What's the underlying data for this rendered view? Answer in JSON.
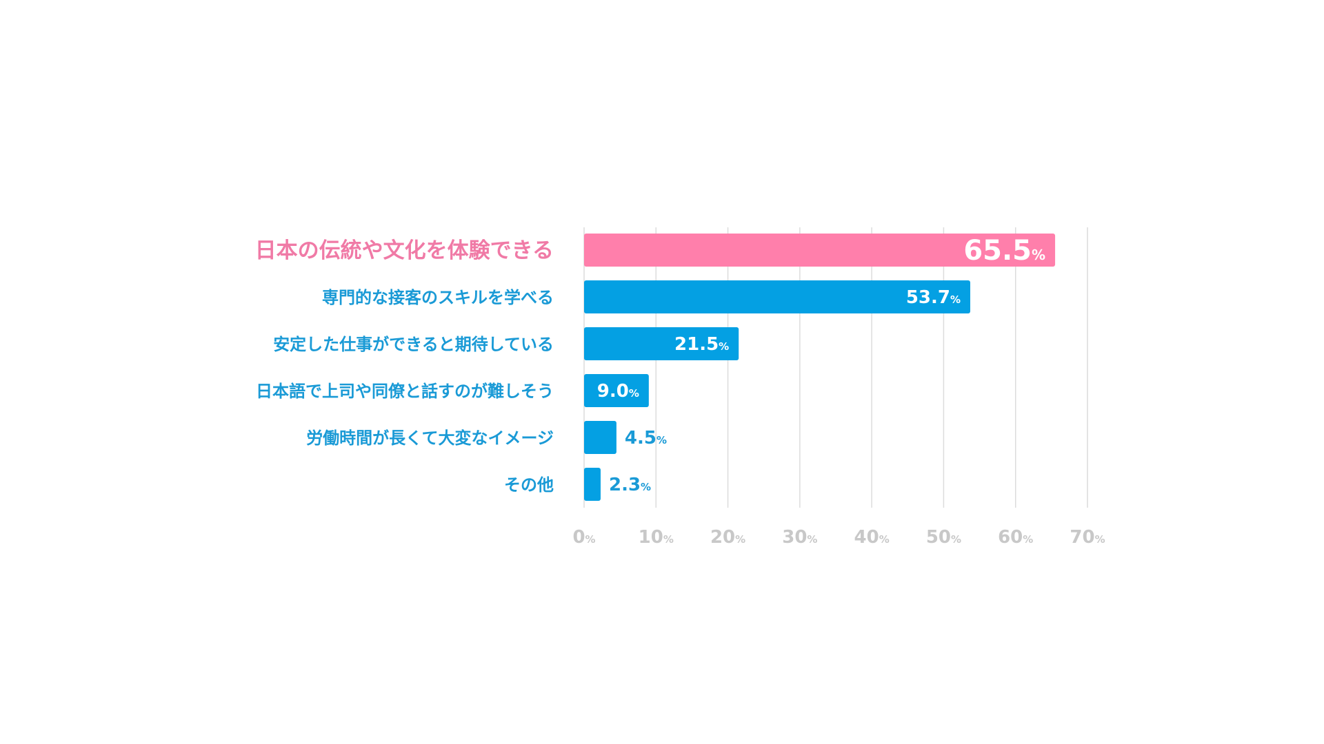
{
  "chart_data": {
    "type": "bar",
    "orientation": "horizontal",
    "categories": [
      "日本の伝統や文化を体験できる",
      "専門的な接客のスキルを学べる",
      "安定した仕事ができると期待している",
      "日本語で上司や同僚と話すのが難しそう",
      "労働時間が長くて大変なイメージ",
      "その他"
    ],
    "values": [
      65.5,
      53.7,
      21.5,
      9.0,
      4.5,
      2.3
    ],
    "value_labels": [
      "65.5",
      "53.7",
      "21.5",
      "9.0",
      "4.5",
      "2.3"
    ],
    "value_unit": "%",
    "highlight_index": 0,
    "xlim": [
      0,
      70
    ],
    "xticks": [
      0,
      10,
      20,
      30,
      40,
      50,
      60,
      70
    ],
    "tick_unit": "%",
    "title": "",
    "xlabel": "",
    "ylabel": "",
    "grid": true,
    "legend": "none",
    "colors": {
      "highlight_bar": "#ff7fab",
      "highlight_label": "#f07aa6",
      "bar": "#04a0e3",
      "label": "#1a9ad6",
      "grid": "#dcdcdc",
      "tick": "#c8c8c8"
    }
  }
}
